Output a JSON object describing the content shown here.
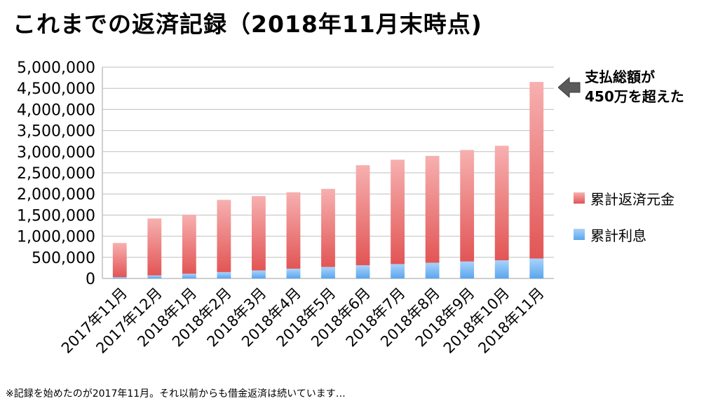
{
  "title": "これまでの返済記録（2018年11月末時点)",
  "callout": {
    "line1": "支払総額が",
    "line2": "450万を超えた"
  },
  "footnote": "※記録を始めたのが2017年11月。それ以前からも借金返済は続いています…",
  "colors": {
    "principal_top": "#f7b0b0",
    "principal_bottom": "#e25555",
    "interest_top": "#a9d2fa",
    "interest_bottom": "#5aa6ee",
    "grid": "#bfbfbf",
    "arrow": "#5a5a5a"
  },
  "chart_data": {
    "type": "bar",
    "stacked": true,
    "categories": [
      "2017年11月",
      "2017年12月",
      "2018年1月",
      "2018年2月",
      "2018年3月",
      "2018年4月",
      "2018年5月",
      "2018年6月",
      "2018年7月",
      "2018年8月",
      "2018年9月",
      "2018年10月",
      "2018年11月"
    ],
    "series": [
      {
        "name": "累計利息",
        "values": [
          30000,
          70000,
          110000,
          150000,
          190000,
          230000,
          270000,
          310000,
          340000,
          370000,
          400000,
          430000,
          470000
        ]
      },
      {
        "name": "累計返済元金",
        "values": [
          810000,
          1350000,
          1400000,
          1710000,
          1760000,
          1810000,
          1850000,
          2370000,
          2470000,
          2530000,
          2640000,
          2710000,
          4180000
        ]
      }
    ],
    "ylim": [
      0,
      5000000
    ],
    "yticks": [
      "0",
      "500,000",
      "1,000,000",
      "1,500,000",
      "2,000,000",
      "2,500,000",
      "3,000,000",
      "3,500,000",
      "4,000,000",
      "4,500,000",
      "5,000,000"
    ],
    "grid": true,
    "legend_position": "right",
    "legend": [
      "累計返済元金",
      "累計利息"
    ]
  }
}
